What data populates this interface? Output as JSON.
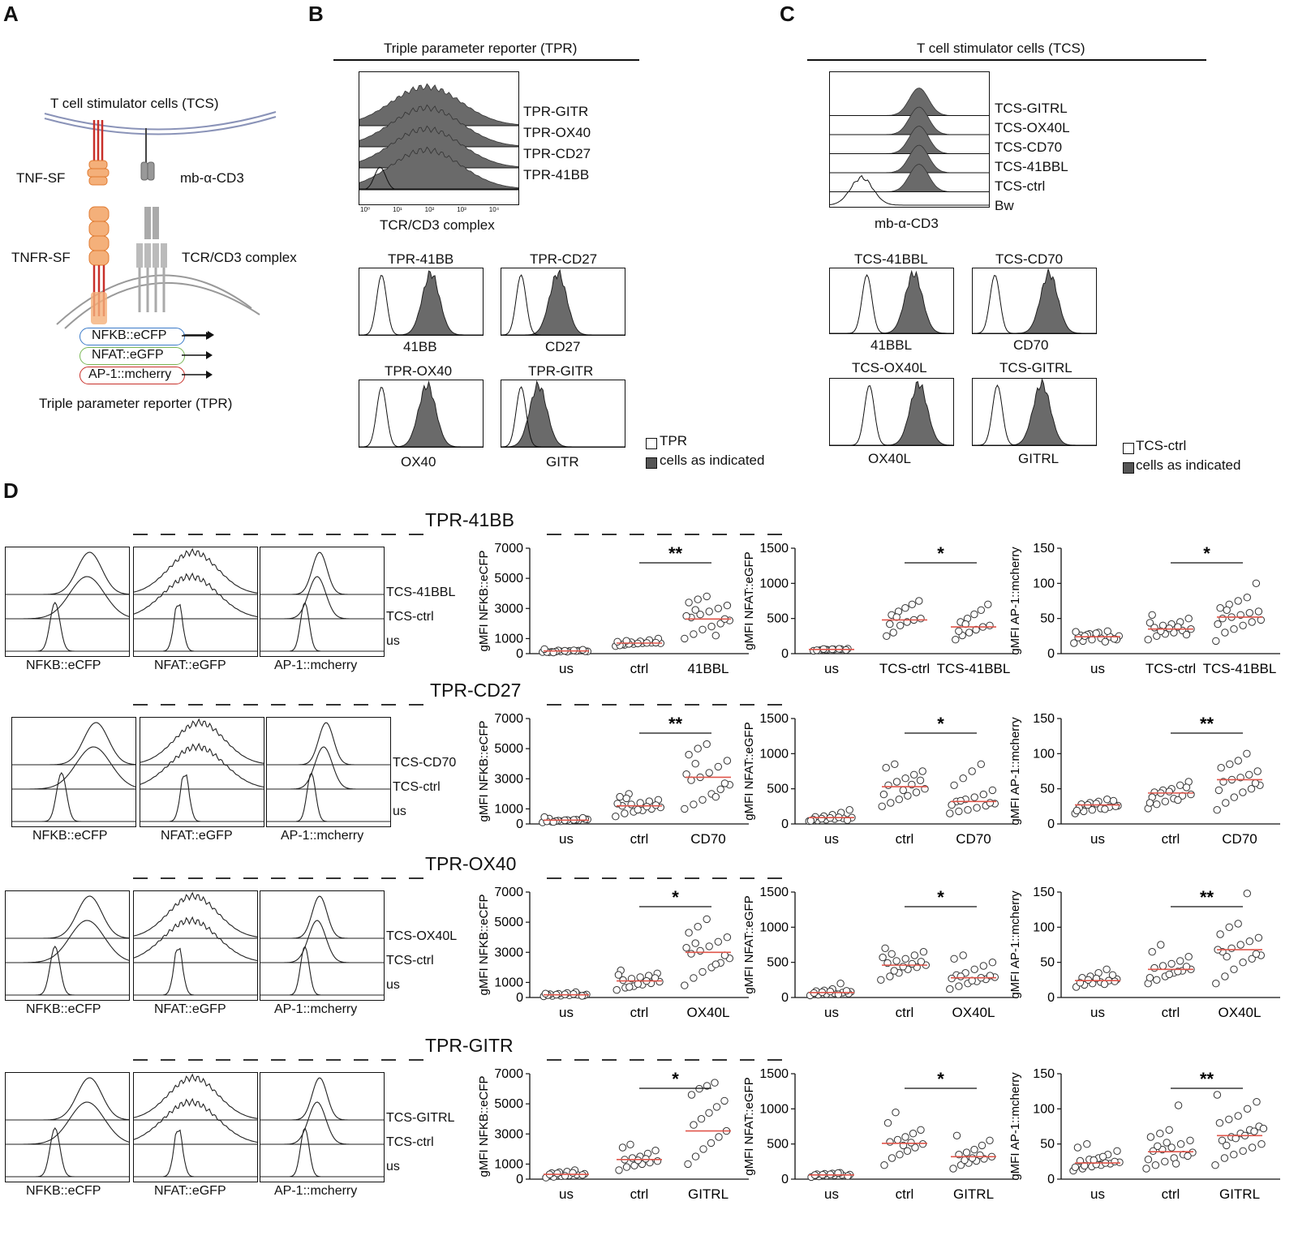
{
  "panels": {
    "A": "A",
    "B": "B",
    "C": "C",
    "D": "D"
  },
  "panelA": {
    "tcs_label": "T cell stimulator cells (TCS)",
    "tnf_sf": "TNF-SF",
    "mb_cd3": "mb-α-CD3",
    "tnfr_sf": "TNFR-SF",
    "tcr_complex": "TCR/CD3 complex",
    "reporters": [
      "NFKB::eCFP",
      "NFAT::eGFP",
      "AP-1::mcherry"
    ],
    "tpr_label": "Triple parameter reporter (TPR)",
    "colors": {
      "blue": "#3a7ac8",
      "green": "#7ab856",
      "red": "#c8302a",
      "orange": "#f4b07a",
      "orange_dark": "#e07a30",
      "gray": "#777777"
    }
  },
  "panelB": {
    "title": "Triple parameter reporter (TPR)",
    "stack_labels": [
      "TPR-GITR",
      "TPR-OX40",
      "TPR-CD27",
      "TPR-41BB"
    ],
    "stack_xlabel": "TCR/CD3 complex",
    "hist": [
      {
        "title": "TPR-41BB",
        "xlabel": "41BB"
      },
      {
        "title": "TPR-CD27",
        "xlabel": "CD27"
      },
      {
        "title": "TPR-OX40",
        "xlabel": "OX40"
      },
      {
        "title": "TPR-GITR",
        "xlabel": "GITR"
      }
    ],
    "legend": [
      "TPR",
      "cells as indicated"
    ],
    "ticks": [
      "10⁰",
      "10¹",
      "10²",
      "10³",
      "10⁴"
    ]
  },
  "panelC": {
    "title": "T cell stimulator cells (TCS)",
    "stack_labels": [
      "TCS-GITRL",
      "TCS-OX40L",
      "TCS-CD70",
      "TCS-41BBL",
      "TCS-ctrl",
      "Bw"
    ],
    "stack_xlabel": "mb-α-CD3",
    "hist": [
      {
        "title": "TCS-41BBL",
        "xlabel": "41BBL"
      },
      {
        "title": "TCS-CD70",
        "xlabel": "CD70"
      },
      {
        "title": "TCS-OX40L",
        "xlabel": "OX40L"
      },
      {
        "title": "TCS-GITRL",
        "xlabel": "GITRL"
      }
    ],
    "legend": [
      "TCS-ctrl",
      "cells as indicated"
    ]
  },
  "panelD": {
    "rows": [
      {
        "title": "TPR-41BB",
        "stim": "TCS-41BBL",
        "ctrl": "TCS-ctrl",
        "us": "us",
        "xlabels": [
          "NFKB::eCFP",
          "NFAT::eGFP",
          "AP-1::mcherry"
        ]
      },
      {
        "title": "TPR-CD27",
        "stim": "TCS-CD70",
        "ctrl": "TCS-ctrl",
        "us": "us",
        "xlabels": [
          "NFKB::eCFP",
          "NFAT::eGFP",
          "AP-1::mcherry"
        ]
      },
      {
        "title": "TPR-OX40",
        "stim": "TCS-OX40L",
        "ctrl": "TCS-ctrl",
        "us": "us",
        "xlabels": [
          "NFKB::eCFP",
          "NFAT::eGFP",
          "AP-1::mcherry"
        ]
      },
      {
        "title": "TPR-GITR",
        "stim": "TCS-GITRL",
        "ctrl": "TCS-ctrl",
        "us": "us",
        "xlabels": [
          "NFKB::eCFP",
          "NFAT::eGFP",
          "AP-1::mcherry"
        ]
      }
    ]
  },
  "chart_data": [
    {
      "type": "scatter",
      "row": "TPR-41BB",
      "ylabel": "gMFI NFKB::eCFP",
      "ylim": [
        0,
        7000
      ],
      "yticks": [
        0,
        1000,
        3000,
        5000,
        7000
      ],
      "categories": [
        "us",
        "ctrl",
        "41BBL"
      ],
      "medians": [
        180,
        700,
        2300
      ],
      "sig": "**",
      "values": [
        [
          100,
          120,
          150,
          180,
          200,
          150,
          90,
          210,
          130,
          170,
          160,
          110,
          140,
          190,
          220,
          260,
          300,
          80
        ],
        [
          500,
          580,
          640,
          700,
          720,
          690,
          610,
          760,
          820,
          900,
          1000,
          550,
          650,
          680,
          710,
          730,
          790,
          850
        ],
        [
          1000,
          1300,
          1600,
          1800,
          2000,
          2200,
          2400,
          2600,
          2800,
          3000,
          3200,
          3400,
          3600,
          3800,
          1200,
          2300,
          2500,
          2900
        ]
      ]
    },
    {
      "type": "scatter",
      "row": "TPR-41BB",
      "ylabel": "gMFI NFAT::eGFP",
      "ylim": [
        0,
        1500
      ],
      "yticks": [
        0,
        500,
        1000,
        1500
      ],
      "categories": [
        "us",
        "TCS-ctrl",
        "TCS-41BBL"
      ],
      "medians": [
        60,
        480,
        380
      ],
      "sig": "*",
      "values": [
        [
          40,
          50,
          55,
          60,
          65,
          70,
          45,
          58,
          62,
          68,
          52,
          48,
          66
        ],
        [
          250,
          300,
          400,
          450,
          480,
          500,
          550,
          600,
          650,
          700,
          750,
          420,
          520
        ],
        [
          200,
          260,
          300,
          340,
          380,
          400,
          450,
          500,
          560,
          620,
          700,
          320,
          420
        ]
      ]
    },
    {
      "type": "scatter",
      "row": "TPR-41BB",
      "ylabel": "gMFI AP-1::mcherry",
      "ylim": [
        0,
        150
      ],
      "yticks": [
        0,
        50,
        100,
        150
      ],
      "categories": [
        "us",
        "TCS-ctrl",
        "TCS-41BBL"
      ],
      "medians": [
        24,
        35,
        52
      ],
      "sig": "*",
      "values": [
        [
          15,
          18,
          20,
          22,
          24,
          25,
          26,
          28,
          30,
          32,
          20,
          23,
          27,
          29,
          17,
          21,
          31,
          25
        ],
        [
          20,
          25,
          28,
          30,
          33,
          35,
          37,
          40,
          42,
          45,
          50,
          55,
          32,
          36,
          38,
          27,
          44
        ],
        [
          18,
          30,
          35,
          40,
          45,
          48,
          50,
          52,
          55,
          58,
          60,
          65,
          70,
          75,
          80,
          100,
          42,
          62
        ]
      ]
    },
    {
      "type": "scatter",
      "row": "TPR-CD27",
      "ylabel": "gMFI NFKB::eCFP",
      "ylim": [
        0,
        7000
      ],
      "yticks": [
        0,
        1000,
        3000,
        5000,
        7000
      ],
      "categories": [
        "us",
        "ctrl",
        "CD70"
      ],
      "medians": [
        250,
        1200,
        3100
      ],
      "sig": "**",
      "values": [
        [
          100,
          150,
          180,
          200,
          250,
          300,
          350,
          220,
          260,
          280,
          320,
          170,
          190,
          240,
          270,
          400,
          450,
          130
        ],
        [
          500,
          700,
          800,
          900,
          1000,
          1100,
          1200,
          1300,
          1400,
          1500,
          1600,
          1800,
          2000,
          950,
          1150,
          1250,
          1350,
          1700
        ],
        [
          1000,
          1300,
          1600,
          2000,
          2300,
          2600,
          2900,
          3100,
          3400,
          3800,
          4200,
          4600,
          5000,
          5300,
          1800,
          2700,
          3300,
          4000
        ]
      ]
    },
    {
      "type": "scatter",
      "row": "TPR-CD27",
      "ylabel": "gMFI NFAT::eGFP",
      "ylim": [
        0,
        1500
      ],
      "yticks": [
        0,
        500,
        1000,
        1500
      ],
      "categories": [
        "us",
        "ctrl",
        "CD70"
      ],
      "medians": [
        90,
        530,
        320
      ],
      "sig": "*",
      "values": [
        [
          40,
          50,
          60,
          70,
          80,
          90,
          100,
          110,
          130,
          160,
          200,
          65,
          75,
          85,
          95,
          55,
          45
        ],
        [
          250,
          300,
          350,
          400,
          450,
          500,
          550,
          600,
          650,
          700,
          750,
          800,
          850,
          480,
          560,
          620,
          420
        ],
        [
          150,
          180,
          200,
          230,
          260,
          290,
          320,
          350,
          380,
          420,
          480,
          550,
          650,
          750,
          850,
          300,
          270,
          330
        ]
      ]
    },
    {
      "type": "scatter",
      "row": "TPR-CD27",
      "ylabel": "gMFI AP-1::mcherry",
      "ylim": [
        0,
        150
      ],
      "yticks": [
        0,
        50,
        100,
        150
      ],
      "categories": [
        "us",
        "ctrl",
        "CD70"
      ],
      "medians": [
        27,
        44,
        63
      ],
      "sig": "**",
      "values": [
        [
          15,
          18,
          20,
          22,
          24,
          26,
          28,
          30,
          32,
          35,
          25,
          23,
          27,
          29,
          21,
          33,
          19
        ],
        [
          22,
          28,
          32,
          36,
          40,
          42,
          45,
          48,
          50,
          55,
          60,
          38,
          44,
          46,
          34,
          52,
          30
        ],
        [
          20,
          30,
          38,
          45,
          50,
          55,
          60,
          63,
          66,
          70,
          75,
          80,
          85,
          90,
          100,
          58,
          48
        ]
      ]
    },
    {
      "type": "scatter",
      "row": "TPR-OX40",
      "ylabel": "gMFI NFKB::eCFP",
      "ylim": [
        0,
        7000
      ],
      "yticks": [
        0,
        1000,
        3000,
        5000,
        7000
      ],
      "categories": [
        "us",
        "ctrl",
        "OX40L"
      ],
      "medians": [
        180,
        1100,
        3000
      ],
      "sig": "*",
      "values": [
        [
          80,
          100,
          120,
          150,
          180,
          200,
          220,
          250,
          300,
          350,
          140,
          160,
          190,
          210,
          230,
          110,
          260
        ],
        [
          500,
          650,
          750,
          850,
          950,
          1050,
          1150,
          1250,
          1350,
          1450,
          1600,
          1800,
          700,
          900,
          1100,
          1300,
          1500
        ],
        [
          800,
          1300,
          1700,
          2000,
          2300,
          2600,
          2900,
          3100,
          3400,
          3700,
          4000,
          4300,
          4700,
          5200,
          2200,
          2800,
          3300,
          3600
        ]
      ]
    },
    {
      "type": "scatter",
      "row": "TPR-OX40",
      "ylabel": "gMFI NFAT::eGFP",
      "ylim": [
        0,
        1500
      ],
      "yticks": [
        0,
        500,
        1000,
        1500
      ],
      "categories": [
        "us",
        "ctrl",
        "OX40L"
      ],
      "medians": [
        70,
        460,
        280
      ],
      "sig": "*",
      "values": [
        [
          30,
          40,
          50,
          60,
          70,
          80,
          90,
          100,
          120,
          200,
          55,
          65,
          75,
          85,
          45,
          95
        ],
        [
          250,
          300,
          350,
          400,
          430,
          460,
          490,
          520,
          550,
          600,
          650,
          700,
          380,
          440,
          480,
          510,
          570,
          620
        ],
        [
          120,
          160,
          200,
          230,
          260,
          290,
          320,
          350,
          400,
          450,
          500,
          550,
          600,
          240,
          280,
          310,
          270,
          300
        ]
      ]
    },
    {
      "type": "scatter",
      "row": "TPR-OX40",
      "ylabel": "gMFI AP-1::mcherry",
      "ylim": [
        0,
        150
      ],
      "yticks": [
        0,
        50,
        100,
        150
      ],
      "categories": [
        "us",
        "ctrl",
        "OX40L"
      ],
      "medians": [
        24,
        40,
        68
      ],
      "sig": "**",
      "values": [
        [
          15,
          18,
          20,
          22,
          24,
          26,
          28,
          30,
          35,
          40,
          23,
          21,
          25,
          27,
          19,
          32
        ],
        [
          20,
          25,
          30,
          35,
          38,
          40,
          42,
          45,
          48,
          52,
          58,
          65,
          75,
          33,
          37,
          44,
          28
        ],
        [
          20,
          30,
          40,
          50,
          55,
          60,
          65,
          70,
          75,
          80,
          85,
          90,
          100,
          105,
          148,
          62,
          68,
          58
        ]
      ]
    },
    {
      "type": "scatter",
      "row": "TPR-GITR",
      "ylabel": "gMFI NFKB::eCFP",
      "ylim": [
        0,
        7000
      ],
      "yticks": [
        0,
        1000,
        3000,
        5000,
        7000
      ],
      "categories": [
        "us",
        "ctrl",
        "GITRL"
      ],
      "medians": [
        320,
        1300,
        3200
      ],
      "sig": "*",
      "values": [
        [
          100,
          150,
          200,
          250,
          300,
          350,
          400,
          450,
          500,
          600,
          280,
          320,
          380,
          220,
          420
        ],
        [
          600,
          800,
          900,
          1000,
          1100,
          1200,
          1300,
          1400,
          1500,
          1700,
          1900,
          2100,
          2300,
          1250,
          1350
        ],
        [
          1000,
          1500,
          2000,
          2400,
          2800,
          3200,
          3600,
          4000,
          4400,
          4800,
          5200,
          5600,
          6000,
          6200,
          6400
        ]
      ]
    },
    {
      "type": "scatter",
      "row": "TPR-GITR",
      "ylabel": "gMFI NFAT::eGFP",
      "ylim": [
        0,
        1500
      ],
      "yticks": [
        0,
        500,
        1000,
        1500
      ],
      "categories": [
        "us",
        "ctrl",
        "GITRL"
      ],
      "medians": [
        60,
        510,
        320
      ],
      "sig": "*",
      "values": [
        [
          30,
          40,
          50,
          55,
          60,
          65,
          70,
          75,
          80,
          90,
          45,
          58,
          62,
          68,
          85
        ],
        [
          200,
          300,
          350,
          400,
          450,
          500,
          530,
          560,
          600,
          650,
          700,
          800,
          950,
          480,
          520
        ],
        [
          150,
          200,
          230,
          260,
          290,
          320,
          350,
          380,
          420,
          480,
          550,
          620,
          270,
          300,
          340
        ]
      ]
    },
    {
      "type": "scatter",
      "row": "TPR-GITR",
      "ylabel": "gMFI AP-1::mcherry",
      "ylim": [
        0,
        150
      ],
      "yticks": [
        0,
        50,
        100,
        150
      ],
      "categories": [
        "us",
        "ctrl",
        "GITRL"
      ],
      "medians": [
        23,
        39,
        62
      ],
      "sig": "**",
      "values": [
        [
          12,
          15,
          18,
          20,
          22,
          24,
          26,
          28,
          30,
          35,
          40,
          45,
          50,
          21,
          23,
          25,
          17,
          19,
          27,
          32
        ],
        [
          15,
          20,
          25,
          30,
          35,
          38,
          40,
          42,
          45,
          50,
          55,
          60,
          65,
          70,
          105,
          33,
          28,
          47,
          52,
          22
        ],
        [
          20,
          30,
          35,
          40,
          45,
          50,
          55,
          60,
          65,
          70,
          75,
          80,
          85,
          90,
          100,
          110,
          120,
          48,
          58,
          62,
          68,
          72
        ]
      ]
    }
  ]
}
